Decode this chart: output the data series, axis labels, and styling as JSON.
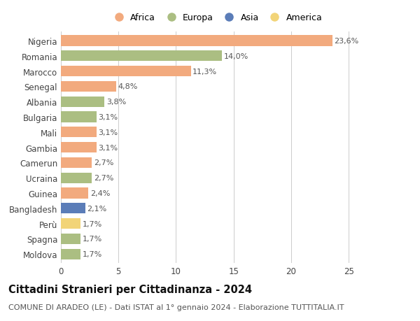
{
  "countries": [
    "Nigeria",
    "Romania",
    "Marocco",
    "Senegal",
    "Albania",
    "Bulgaria",
    "Mali",
    "Gambia",
    "Camerun",
    "Ucraina",
    "Guinea",
    "Bangladesh",
    "Perù",
    "Spagna",
    "Moldova"
  ],
  "values": [
    23.6,
    14.0,
    11.3,
    4.8,
    3.8,
    3.1,
    3.1,
    3.1,
    2.7,
    2.7,
    2.4,
    2.1,
    1.7,
    1.7,
    1.7
  ],
  "labels": [
    "23,6%",
    "14,0%",
    "11,3%",
    "4,8%",
    "3,8%",
    "3,1%",
    "3,1%",
    "3,1%",
    "2,7%",
    "2,7%",
    "2,4%",
    "2,1%",
    "1,7%",
    "1,7%",
    "1,7%"
  ],
  "continents": [
    "Africa",
    "Europa",
    "Africa",
    "Africa",
    "Europa",
    "Europa",
    "Africa",
    "Africa",
    "Africa",
    "Europa",
    "Africa",
    "Asia",
    "America",
    "Europa",
    "Europa"
  ],
  "colors": {
    "Africa": "#F2AA7E",
    "Europa": "#ABBE82",
    "Asia": "#5B7DB8",
    "America": "#F2D478"
  },
  "title": "Cittadini Stranieri per Cittadinanza - 2024",
  "subtitle": "COMUNE DI ARADEO (LE) - Dati ISTAT al 1° gennaio 2024 - Elaborazione TUTTITALIA.IT",
  "xlim": [
    0,
    27
  ],
  "xticks": [
    0,
    5,
    10,
    15,
    20,
    25
  ],
  "bg_color": "#ffffff",
  "grid_color": "#cccccc",
  "bar_height": 0.7,
  "label_fontsize": 8,
  "title_fontsize": 10.5,
  "subtitle_fontsize": 8,
  "tick_fontsize": 8.5,
  "legend_fontsize": 9
}
